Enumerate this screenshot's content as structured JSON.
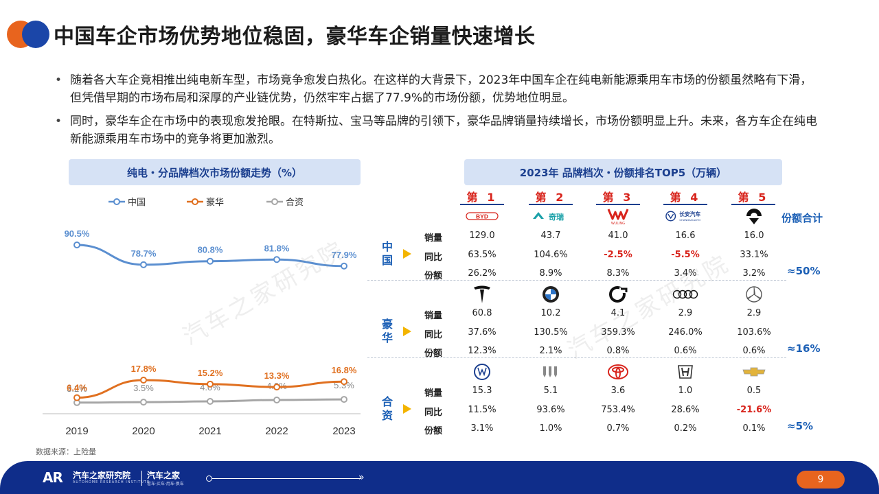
{
  "title": "中国车企市场优势地位稳固，豪华车企销量快速增长",
  "bullets": [
    "随着各大车企竞相推出纯电新车型，市场竞争愈发白热化。在这样的大背景下，2023年中国车企在纯电新能源乘用车市场的份额虽然略有下滑，但凭借早期的市场布局和深厚的产业链优势，仍然牢牢占据了77.9%的市场份额，优势地位明显。",
    "同时，豪华车企在市场中的表现愈发抢眼。在特斯拉、宝马等品牌的引领下，豪华品牌销量持续增长，市场份额明显上升。未来，各方车企在纯电新能源乘用车市场中的竞争将更加激烈。"
  ],
  "left_panel_title": "纯电・分品牌档次市场份额走势（%）",
  "right_panel_title": "2023年 品牌档次・份额排名TOP5（万辆）",
  "source": "数据来源：上险量",
  "watermark": "汽车之家研究院",
  "chart_data": {
    "type": "line",
    "title": "纯电・分品牌档次市场份额走势（%）",
    "x": [
      "2019",
      "2020",
      "2021",
      "2022",
      "2023"
    ],
    "series": [
      {
        "name": "中国",
        "color": "#5b8fd0",
        "values": [
          90.5,
          78.7,
          80.8,
          81.8,
          77.9
        ],
        "labels": [
          "90.5%",
          "78.7%",
          "80.8%",
          "81.8%",
          "77.9%"
        ]
      },
      {
        "name": "豪华",
        "color": "#e07020",
        "values": [
          6.4,
          17.8,
          15.2,
          13.3,
          16.8
        ],
        "labels": [
          "6.4%",
          "17.8%",
          "15.2%",
          "13.3%",
          "16.8%"
        ]
      },
      {
        "name": "合资",
        "color": "#a6a6a6",
        "values": [
          3.2,
          3.5,
          4.0,
          4.9,
          5.3
        ],
        "labels": [
          "3.2%",
          "3.5%",
          "4.0%",
          "4.9%",
          "5.3%"
        ]
      }
    ],
    "legend_position": "top",
    "grid": false
  },
  "ranking": {
    "ranks": [
      "第 1",
      "第 2",
      "第 3",
      "第 4",
      "第 5"
    ],
    "metrics": [
      "销量",
      "同比",
      "份额"
    ],
    "share_header": "份额合计",
    "groups": [
      {
        "label": "中国",
        "share_total": "≈50%",
        "brands": [
          "BYD",
          "Chery",
          "Wuling",
          "Changan",
          "NIO"
        ],
        "rows": [
          [
            "129.0",
            "43.7",
            "41.0",
            "16.6",
            "16.0"
          ],
          [
            "63.5%",
            "104.6%",
            "-2.5%",
            "-5.5%",
            "33.1%"
          ],
          [
            "26.2%",
            "8.9%",
            "8.3%",
            "3.4%",
            "3.2%"
          ]
        ]
      },
      {
        "label": "豪华",
        "share_total": "≈16%",
        "brands": [
          "Tesla",
          "BMW",
          "smart",
          "Audi",
          "Mercedes-Benz"
        ],
        "rows": [
          [
            "60.8",
            "10.2",
            "4.1",
            "2.9",
            "2.9"
          ],
          [
            "37.6%",
            "130.5%",
            "359.3%",
            "246.0%",
            "103.6%"
          ],
          [
            "12.3%",
            "2.1%",
            "0.8%",
            "0.6%",
            "0.6%"
          ]
        ]
      },
      {
        "label": "合资",
        "share_total": "≈5%",
        "brands": [
          "Volkswagen",
          "Buick",
          "Toyota",
          "Honda",
          "Chevrolet"
        ],
        "rows": [
          [
            "15.3",
            "5.1",
            "3.6",
            "1.0",
            "0.5"
          ],
          [
            "11.5%",
            "93.6%",
            "753.4%",
            "28.6%",
            "-21.6%"
          ],
          [
            "3.1%",
            "1.0%",
            "0.7%",
            "0.2%",
            "0.1%"
          ]
        ]
      }
    ],
    "logo_texts": {
      "byd": "BYD",
      "chery": "奇瑞",
      "changan": "长安汽车",
      "changan_en": "CHANGAN AUTO",
      "wuling": "WULING"
    }
  },
  "footer": {
    "logo": "AR",
    "brand": "汽车之家研究院",
    "brand_en": "AUTOHOME RESEARCH INSTITUTE",
    "brand2": "汽车之家",
    "brand2_sub": "看车·买车·用车·换车",
    "page": "9"
  },
  "colors": {
    "accent_blue": "#1b3f8f",
    "accent_orange": "#e8641e",
    "negative": "#d8241c",
    "panel_bg": "#d6e2f5"
  }
}
